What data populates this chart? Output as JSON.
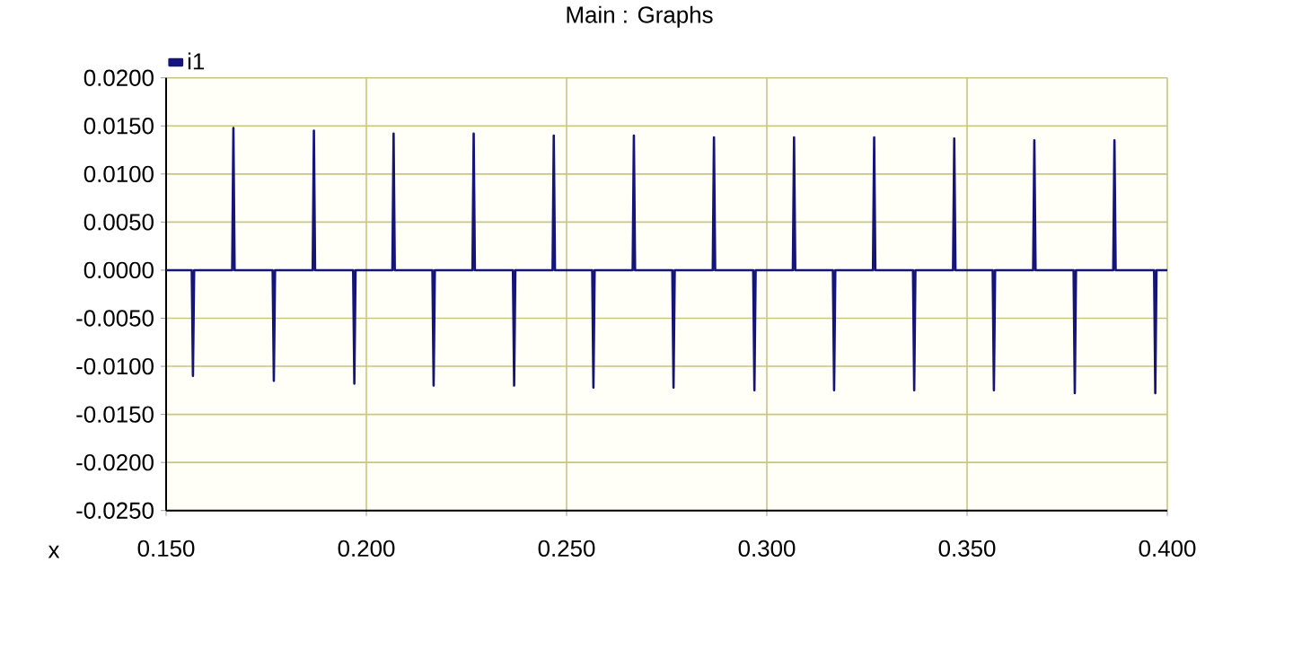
{
  "chart_data": {
    "type": "line",
    "title": "Main : Graphs",
    "annotations": [
      "x"
    ],
    "legend": "top left",
    "grid": true,
    "line_style": "solid",
    "xlim": [
      0.15,
      0.4
    ],
    "xticks": [
      {
        "value": 0.15,
        "label": "0.150"
      },
      {
        "value": 0.2,
        "label": "0.200"
      },
      {
        "value": 0.25,
        "label": "0.250"
      },
      {
        "value": 0.3,
        "label": "0.300"
      },
      {
        "value": 0.35,
        "label": "0.350"
      },
      {
        "value": 0.4,
        "label": "0.400"
      }
    ],
    "ylim": [
      -0.025,
      0.02
    ],
    "yticks": [
      {
        "value": -0.025,
        "label": "-0.0250"
      },
      {
        "value": -0.02,
        "label": "-0.0200"
      },
      {
        "value": -0.015,
        "label": "-0.0150"
      },
      {
        "value": -0.01,
        "label": "-0.0100"
      },
      {
        "value": -0.005,
        "label": "-0.0050"
      },
      {
        "value": 0,
        "label": "0.0000"
      },
      {
        "value": 0.005,
        "label": "0.0050"
      },
      {
        "value": 0.01,
        "label": "0.0100"
      },
      {
        "value": 0.015,
        "label": "0.0150"
      },
      {
        "value": 0.02,
        "label": "0.0200"
      }
    ],
    "series": [
      {
        "name": "i1",
        "color": "#14147a",
        "x": [
          0.15,
          0.1564,
          0.1567,
          0.157,
          0.1665,
          0.1668,
          0.1671,
          0.1766,
          0.1769,
          0.1772,
          0.1866,
          0.1869,
          0.1872,
          0.1967,
          0.197,
          0.1973,
          0.2065,
          0.2068,
          0.2071,
          0.2165,
          0.2168,
          0.2171,
          0.2265,
          0.2268,
          0.2271,
          0.2366,
          0.2369,
          0.2372,
          0.2465,
          0.2468,
          0.2471,
          0.2564,
          0.2567,
          0.257,
          0.2665,
          0.2668,
          0.2671,
          0.2764,
          0.2767,
          0.277,
          0.2865,
          0.2868,
          0.2871,
          0.2966,
          0.2969,
          0.2972,
          0.3065,
          0.3068,
          0.3071,
          0.3165,
          0.3168,
          0.3171,
          0.3265,
          0.3268,
          0.3271,
          0.3365,
          0.3368,
          0.3371,
          0.3465,
          0.3468,
          0.3471,
          0.3564,
          0.3567,
          0.357,
          0.3665,
          0.3668,
          0.3671,
          0.3766,
          0.3769,
          0.3772,
          0.3865,
          0.3868,
          0.3871,
          0.3967,
          0.397,
          0.3973,
          0.4
        ],
        "values": [
          0,
          0,
          -0.011,
          0,
          0,
          0.0148,
          0,
          0,
          -0.0115,
          0,
          0,
          0.0145,
          0,
          0,
          -0.0118,
          0,
          0,
          0.0142,
          0,
          0,
          -0.012,
          0,
          0,
          0.0142,
          0,
          0,
          -0.012,
          0,
          0,
          0.014,
          0,
          0,
          -0.0122,
          0,
          0,
          0.014,
          0,
          0,
          -0.0122,
          0,
          0,
          0.0138,
          0,
          0,
          -0.0125,
          0,
          0,
          0.0138,
          0,
          0,
          -0.0125,
          0,
          0,
          0.0138,
          0,
          0,
          -0.0125,
          0,
          0,
          0.0137,
          0,
          0,
          -0.0125,
          0,
          0,
          0.0135,
          0,
          0,
          -0.0128,
          0,
          0,
          0.0135,
          0,
          0,
          -0.0128,
          0,
          0
        ]
      }
    ]
  }
}
